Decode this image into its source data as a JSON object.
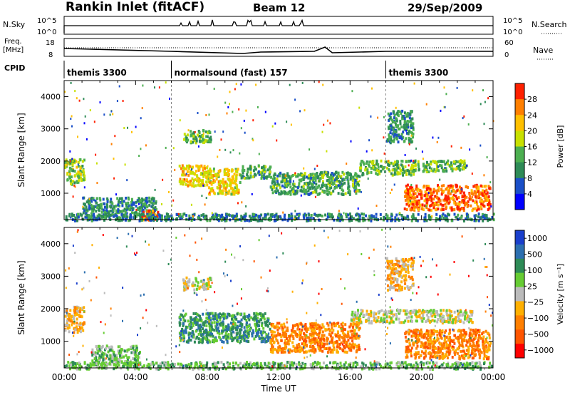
{
  "header": {
    "station": "Rankin Inlet (fitACF)",
    "beam": "Beam 12",
    "date": "29/Sep/2009"
  },
  "strip_labels": {
    "nsky": "N.Sky",
    "nsky_top": "10^5",
    "nsky_bottom": "10^0",
    "nsearch": "N.Search",
    "nsearch_top": "10^5",
    "nsearch_bottom": "10^0",
    "freq_line1": "Freq.",
    "freq_line2": "[MHz]",
    "freq_top": "18",
    "freq_bottom": "8",
    "nave": "Nave",
    "nave_top": "60",
    "nave_bottom": "0",
    "cpid": "CPID"
  },
  "modes": [
    {
      "label": "themis 3300",
      "start_hour": 0
    },
    {
      "label": "normalsound (fast) 157",
      "start_hour": 6
    },
    {
      "label": "themis 3300",
      "start_hour": 18
    }
  ],
  "colors": {
    "power": [
      "#0000ff",
      "#1a4fc8",
      "#2e8b57",
      "#4caf50",
      "#c8e000",
      "#ffc000",
      "#ff7f00",
      "#ff2000"
    ],
    "velocity": [
      "#1a3fcc",
      "#2c6fb0",
      "#2e8b57",
      "#66cc33",
      "#bbbbbb",
      "#ffb000",
      "#ff7f00",
      "#ff5500",
      "#ff0000"
    ]
  },
  "chart_data": [
    {
      "type": "heatmap",
      "quantity": "power",
      "ylabel": "Slant Range [km]",
      "ylim": [
        180,
        4500
      ],
      "yticks": [
        "1000",
        "2000",
        "3000",
        "4000"
      ],
      "xlim": [
        0,
        24
      ],
      "colorbar_label": "Power [dB]",
      "colorbar_ticks": [
        "4",
        "8",
        "12",
        "16",
        "20",
        "24",
        "28"
      ],
      "colorbar_range": [
        0,
        32
      ],
      "blobs": [
        {
          "x": [
            0.0,
            1.1
          ],
          "y": [
            1300,
            2100
          ],
          "v": 16
        },
        {
          "x": [
            1.0,
            5.2
          ],
          "y": [
            280,
            900
          ],
          "v": 11
        },
        {
          "x": [
            4.2,
            5.2
          ],
          "y": [
            200,
            500
          ],
          "v": 27
        },
        {
          "x": [
            6.4,
            8.0
          ],
          "y": [
            1250,
            1900
          ],
          "v": 21
        },
        {
          "x": [
            8.0,
            9.8
          ],
          "y": [
            1000,
            1800
          ],
          "v": 20
        },
        {
          "x": [
            9.8,
            11.5
          ],
          "y": [
            1500,
            1900
          ],
          "v": 12
        },
        {
          "x": [
            6.6,
            8.2
          ],
          "y": [
            2600,
            3000
          ],
          "v": 14
        },
        {
          "x": [
            11.5,
            16.5
          ],
          "y": [
            1000,
            1700
          ],
          "v": 12
        },
        {
          "x": [
            16.5,
            19.5
          ],
          "y": [
            1600,
            2050
          ],
          "v": 15
        },
        {
          "x": [
            19.5,
            22.5
          ],
          "y": [
            1700,
            2050
          ],
          "v": 14
        },
        {
          "x": [
            19.0,
            23.8
          ],
          "y": [
            500,
            1300
          ],
          "v": 27
        },
        {
          "x": [
            18.0,
            19.5
          ],
          "y": [
            2600,
            3600
          ],
          "v": 11
        },
        {
          "x": [
            0.0,
            24.0
          ],
          "y": [
            180,
            400
          ],
          "v": 9
        }
      ]
    },
    {
      "type": "heatmap",
      "quantity": "velocity",
      "ylabel": "Slant Range [km]",
      "ylim": [
        180,
        4500
      ],
      "yticks": [
        "1000",
        "2000",
        "3000",
        "4000"
      ],
      "xlim": [
        0,
        24
      ],
      "xticks": [
        "00:00",
        "04:00",
        "08:00",
        "12:00",
        "16:00",
        "20:00",
        "00:00"
      ],
      "xlabel": "Time UT",
      "colorbar_label": "Velocity [m s⁻¹]",
      "colorbar_ticks": [
        "1000",
        "500",
        "100",
        "25",
        "−25",
        "−100",
        "−500",
        "−1000"
      ],
      "blobs": [
        {
          "x": [
            0.0,
            1.1
          ],
          "y": [
            1300,
            2100
          ],
          "v": 5
        },
        {
          "x": [
            1.5,
            4.2
          ],
          "y": [
            300,
            900
          ],
          "v": 3
        },
        {
          "x": [
            6.4,
            11.5
          ],
          "y": [
            1000,
            1900
          ],
          "v": 2
        },
        {
          "x": [
            6.6,
            8.2
          ],
          "y": [
            2600,
            3000
          ],
          "v": 4
        },
        {
          "x": [
            11.5,
            16.5
          ],
          "y": [
            700,
            1600
          ],
          "v": 6
        },
        {
          "x": [
            16.0,
            22.8
          ],
          "y": [
            1600,
            2000
          ],
          "v": 4
        },
        {
          "x": [
            19.0,
            23.8
          ],
          "y": [
            500,
            1400
          ],
          "v": 6
        },
        {
          "x": [
            18.0,
            19.5
          ],
          "y": [
            2600,
            3600
          ],
          "v": 5
        },
        {
          "x": [
            0.0,
            24.0
          ],
          "y": [
            180,
            400
          ],
          "v": 3
        }
      ]
    }
  ]
}
